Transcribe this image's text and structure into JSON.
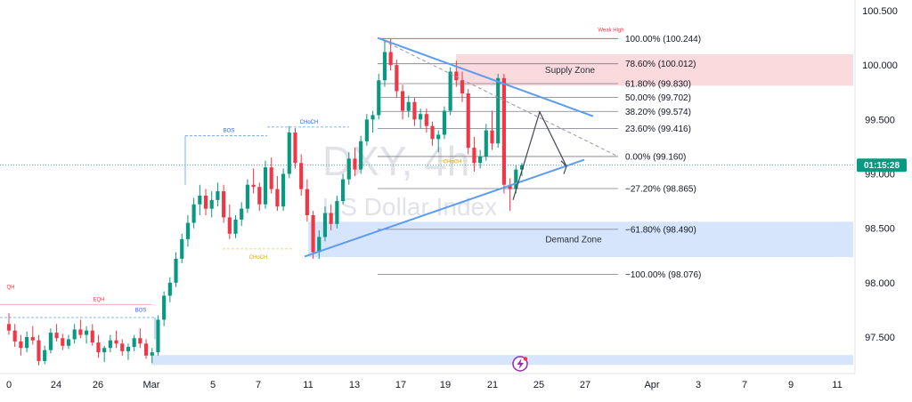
{
  "watermark": {
    "symbol": "DXY, 4h",
    "name": "US Dollar Index"
  },
  "price_tag": "01:15:28",
  "colors": {
    "up": "#089981",
    "down": "#f23645",
    "trend": "#5b9cf2",
    "supply": "#f9d4d6",
    "demand": "#cfe0fb",
    "fib": "#787b86"
  },
  "chart_data": {
    "type": "candlestick",
    "y_axis": {
      "ticks": [
        "100.500",
        "100.000",
        "99.500",
        "99.000",
        "98.500",
        "98.000",
        "97.500"
      ],
      "range": [
        97.27,
        100.55
      ]
    },
    "x_axis": {
      "ticks": [
        "0",
        "24",
        "26",
        "Mar",
        "5",
        "7",
        "11",
        "13",
        "17",
        "19",
        "21",
        "25",
        "27",
        "Apr",
        "3",
        "7",
        "9",
        "11"
      ]
    },
    "current_price": 99.08,
    "fib_levels": [
      {
        "label": "100.00% (100.244)",
        "value": 100.244
      },
      {
        "label": "78.60% (100.012)",
        "value": 100.012
      },
      {
        "label": "61.80% (99.830)",
        "value": 99.83
      },
      {
        "label": "50.00% (99.702)",
        "value": 99.702
      },
      {
        "label": "38.20% (99.574)",
        "value": 99.574
      },
      {
        "label": "23.60% (99.416)",
        "value": 99.416
      },
      {
        "label": "0.00% (99.160)",
        "value": 99.16
      },
      {
        "label": "−27.20% (98.865)",
        "value": 98.865
      },
      {
        "label": "−61.80% (98.490)",
        "value": 98.49
      },
      {
        "label": "−100.00% (98.076)",
        "value": 98.076
      }
    ],
    "zones": [
      {
        "label": "Supply Zone",
        "top": 100.1,
        "bottom": 99.81
      },
      {
        "label": "Demand Zone",
        "top": 98.56,
        "bottom": 98.235
      },
      {
        "label": "",
        "top": 97.335,
        "bottom": 97.245
      }
    ],
    "annotations": [
      {
        "text": "Weak High",
        "value": 100.244
      },
      {
        "text": "BOS",
        "value": 99.35
      },
      {
        "text": "CHoCH",
        "value": 99.43
      },
      {
        "text": "CHoCH",
        "value": 98.31
      },
      {
        "text": "CHoCH",
        "value": 99.12
      },
      {
        "text": "EQH",
        "value": 97.8
      },
      {
        "text": "QH",
        "value": 97.8
      },
      {
        "text": "BOS",
        "value": 97.7
      }
    ],
    "candles": [
      [
        97.62,
        97.72,
        97.52,
        97.56
      ],
      [
        97.56,
        97.62,
        97.41,
        97.46
      ],
      [
        97.46,
        97.52,
        97.33,
        97.4
      ],
      [
        97.4,
        97.55,
        97.36,
        97.5
      ],
      [
        97.5,
        97.6,
        97.43,
        97.47
      ],
      [
        97.47,
        97.52,
        97.24,
        97.28
      ],
      [
        97.28,
        97.42,
        97.25,
        97.38
      ],
      [
        97.38,
        97.58,
        97.35,
        97.54
      ],
      [
        97.54,
        97.62,
        97.46,
        97.49
      ],
      [
        97.49,
        97.53,
        97.38,
        97.42
      ],
      [
        97.42,
        97.52,
        97.39,
        97.48
      ],
      [
        97.48,
        97.62,
        97.44,
        97.57
      ],
      [
        97.57,
        97.66,
        97.49,
        97.52
      ],
      [
        97.52,
        97.6,
        97.44,
        97.56
      ],
      [
        97.56,
        97.62,
        97.42,
        97.45
      ],
      [
        97.45,
        97.52,
        97.31,
        97.36
      ],
      [
        97.36,
        97.42,
        97.27,
        97.4
      ],
      [
        97.4,
        97.52,
        97.36,
        97.47
      ],
      [
        97.47,
        97.56,
        97.4,
        97.44
      ],
      [
        97.44,
        97.48,
        97.33,
        97.37
      ],
      [
        97.37,
        97.44,
        97.29,
        97.41
      ],
      [
        97.41,
        97.52,
        97.37,
        97.49
      ],
      [
        97.49,
        97.58,
        97.4,
        97.44
      ],
      [
        97.44,
        97.48,
        97.3,
        97.33
      ],
      [
        97.33,
        97.4,
        97.26,
        97.36
      ],
      [
        97.36,
        97.7,
        97.33,
        97.66
      ],
      [
        97.66,
        97.92,
        97.6,
        97.88
      ],
      [
        97.88,
        98.05,
        97.82,
        98.0
      ],
      [
        98.0,
        98.28,
        97.96,
        98.22
      ],
      [
        98.22,
        98.45,
        98.18,
        98.4
      ],
      [
        98.4,
        98.62,
        98.33,
        98.55
      ],
      [
        98.55,
        98.78,
        98.5,
        98.72
      ],
      [
        98.72,
        98.9,
        98.62,
        98.8
      ],
      [
        98.8,
        98.86,
        98.62,
        98.68
      ],
      [
        98.68,
        98.84,
        98.6,
        98.76
      ],
      [
        98.76,
        98.92,
        98.7,
        98.84
      ],
      [
        98.84,
        98.9,
        98.55,
        98.6
      ],
      [
        98.6,
        98.72,
        98.4,
        98.45
      ],
      [
        98.45,
        98.62,
        98.41,
        98.58
      ],
      [
        98.58,
        98.74,
        98.52,
        98.68
      ],
      [
        98.68,
        98.95,
        98.64,
        98.9
      ],
      [
        98.9,
        99.05,
        98.82,
        98.88
      ],
      [
        98.88,
        98.92,
        98.66,
        98.72
      ],
      [
        98.72,
        99.12,
        98.68,
        99.06
      ],
      [
        99.06,
        99.15,
        98.82,
        98.86
      ],
      [
        98.86,
        98.98,
        98.66,
        98.7
      ],
      [
        98.7,
        99.05,
        98.66,
        99.0
      ],
      [
        99.0,
        99.44,
        98.96,
        99.38
      ],
      [
        99.38,
        99.42,
        99.05,
        99.1
      ],
      [
        99.1,
        99.18,
        98.8,
        98.86
      ],
      [
        98.86,
        98.95,
        98.56,
        98.62
      ],
      [
        98.62,
        98.66,
        98.22,
        98.28
      ],
      [
        98.28,
        98.48,
        98.22,
        98.42
      ],
      [
        98.42,
        98.7,
        98.38,
        98.64
      ],
      [
        98.64,
        98.72,
        98.48,
        98.54
      ],
      [
        98.54,
        98.8,
        98.5,
        98.75
      ],
      [
        98.75,
        99.0,
        98.72,
        98.95
      ],
      [
        98.95,
        99.2,
        98.9,
        99.14
      ],
      [
        99.14,
        99.24,
        98.98,
        99.04
      ],
      [
        99.04,
        99.35,
        99.0,
        99.3
      ],
      [
        99.3,
        99.55,
        99.26,
        99.5
      ],
      [
        99.5,
        99.58,
        99.38,
        99.54
      ],
      [
        99.54,
        99.92,
        99.5,
        99.86
      ],
      [
        99.86,
        100.22,
        99.8,
        100.12
      ],
      [
        100.12,
        100.24,
        99.95,
        100.0
      ],
      [
        100.0,
        100.05,
        99.7,
        99.76
      ],
      [
        99.76,
        99.82,
        99.5,
        99.58
      ],
      [
        99.58,
        99.72,
        99.52,
        99.66
      ],
      [
        99.66,
        99.7,
        99.44,
        99.5
      ],
      [
        99.5,
        99.6,
        99.42,
        99.55
      ],
      [
        99.55,
        99.6,
        99.38,
        99.44
      ],
      [
        99.44,
        99.48,
        99.26,
        99.32
      ],
      [
        99.32,
        99.4,
        99.2,
        99.36
      ],
      [
        99.36,
        99.62,
        99.32,
        99.58
      ],
      [
        99.58,
        99.98,
        99.54,
        99.94
      ],
      [
        99.94,
        100.04,
        99.8,
        99.86
      ],
      [
        99.86,
        99.94,
        99.66,
        99.74
      ],
      [
        99.74,
        99.78,
        99.18,
        99.24
      ],
      [
        99.24,
        99.34,
        99.02,
        99.1
      ],
      [
        99.1,
        99.22,
        99.05,
        99.16
      ],
      [
        99.16,
        99.46,
        99.12,
        99.4
      ],
      [
        99.4,
        99.58,
        99.22,
        99.28
      ],
      [
        99.28,
        99.92,
        99.24,
        99.88
      ],
      [
        99.88,
        99.92,
        98.82,
        98.9
      ],
      [
        98.9,
        98.96,
        98.66,
        98.86
      ],
      [
        98.86,
        99.08,
        98.82,
        99.04
      ],
      [
        99.04,
        99.1,
        98.98,
        99.08
      ]
    ]
  }
}
